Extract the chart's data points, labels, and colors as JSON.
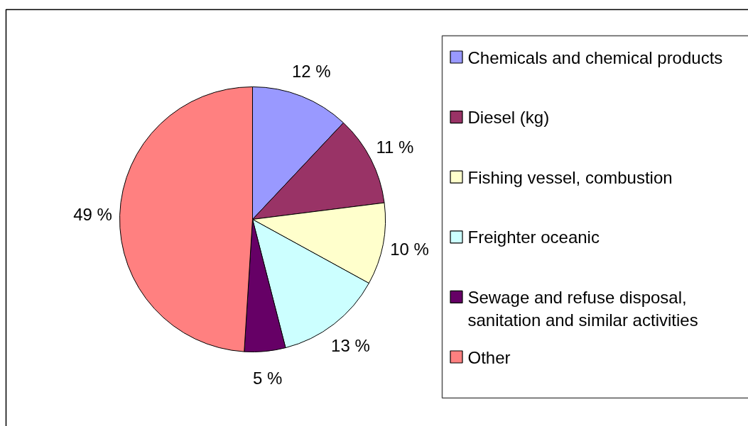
{
  "chart_data": {
    "type": "pie",
    "categories": [
      "Chemicals and chemical products",
      "Diesel (kg)",
      "Fishing vessel, combustion",
      "Freighter oceanic",
      "Sewage and refuse disposal, sanitation and similar activities",
      "Other"
    ],
    "values": [
      12,
      11,
      10,
      13,
      5,
      49
    ],
    "colors": [
      "#9999ff",
      "#993366",
      "#ffffcc",
      "#ccffff",
      "#660066",
      "#ff8080"
    ],
    "value_labels": [
      "12 %",
      "11 %",
      "10 %",
      "13 %",
      "5 %",
      "49 %"
    ],
    "legend": "right"
  }
}
